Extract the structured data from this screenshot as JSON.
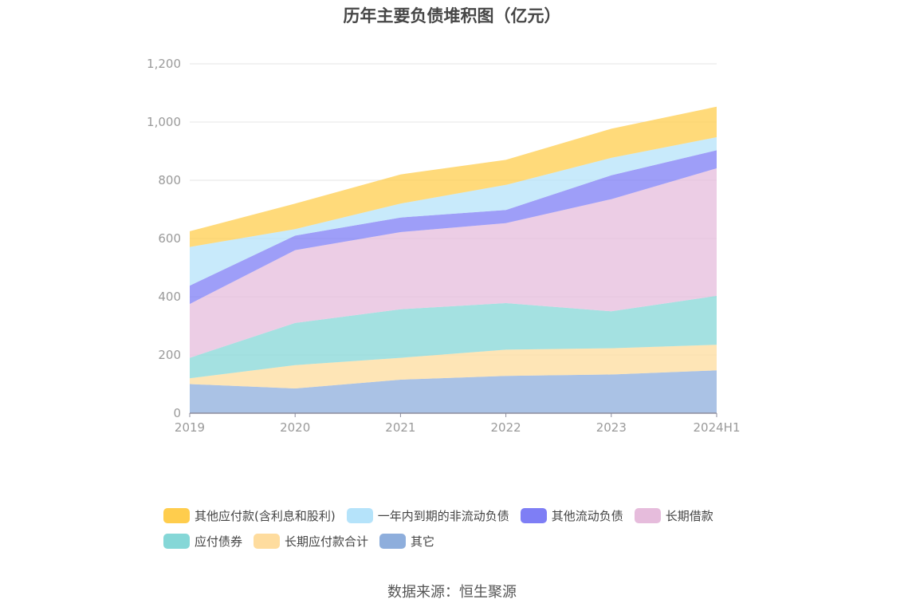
{
  "title": "历年主要负债堆积图（亿元）",
  "source": "数据来源：恒生聚源",
  "chart_data": {
    "type": "area",
    "stacked": true,
    "categories": [
      "2019",
      "2020",
      "2021",
      "2022",
      "2023",
      "2024H1"
    ],
    "ylim": [
      0,
      1200
    ],
    "yticks": [
      "0",
      "200",
      "400",
      "600",
      "800",
      "1,000",
      "1,200"
    ],
    "ytick_values": [
      0,
      200,
      400,
      600,
      800,
      1000,
      1200
    ],
    "grid": true,
    "legend_position": "bottom",
    "series": [
      {
        "name": "其它",
        "color": "#8eaedc",
        "values": [
          100,
          85,
          115,
          128,
          133,
          147
        ]
      },
      {
        "name": "长期应付款合计",
        "color": "#fedc9e",
        "values": [
          20,
          80,
          75,
          90,
          90,
          88
        ]
      },
      {
        "name": "应付债券",
        "color": "#85d7d7",
        "values": [
          70,
          145,
          167,
          160,
          127,
          168
        ]
      },
      {
        "name": "长期借款",
        "color": "#e6bcdc",
        "values": [
          185,
          250,
          265,
          275,
          385,
          438
        ]
      },
      {
        "name": "其他流动负债",
        "color": "#7e7ef5",
        "values": [
          63,
          50,
          50,
          45,
          82,
          62
        ]
      },
      {
        "name": "一年内到期的非流动负债",
        "color": "#b5e3fa",
        "values": [
          133,
          22,
          48,
          86,
          60,
          45
        ]
      },
      {
        "name": "其他应付款(含利息和股利)",
        "color": "#ffcd4d",
        "values": [
          54,
          88,
          100,
          86,
          100,
          105
        ]
      }
    ]
  }
}
